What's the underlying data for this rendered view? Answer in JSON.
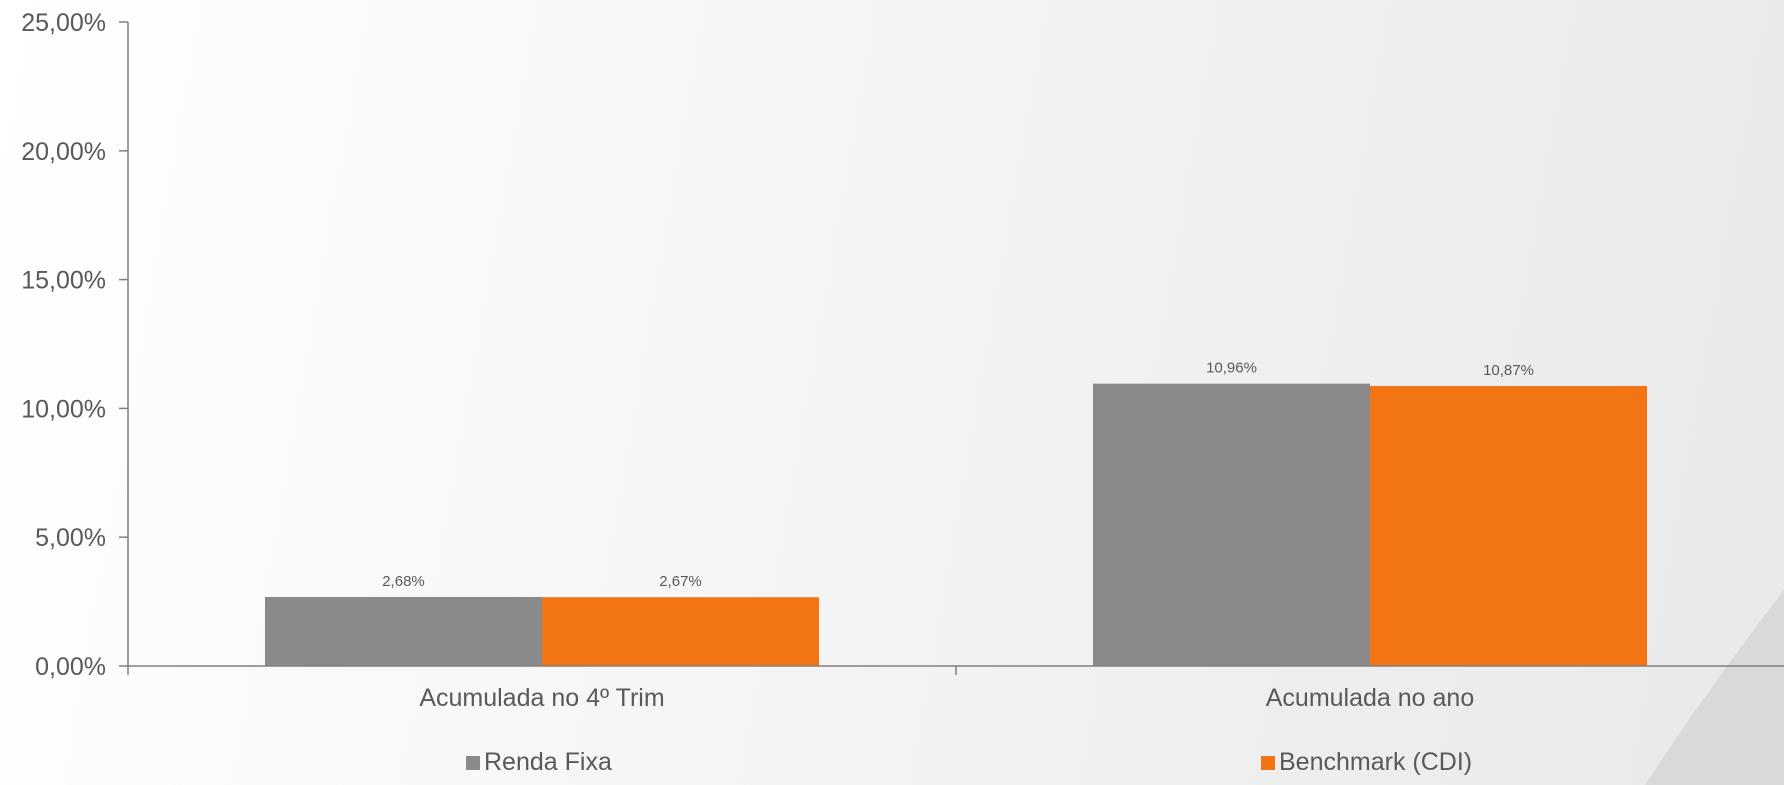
{
  "chart_data": {
    "type": "bar",
    "title": "",
    "xlabel": "",
    "ylabel": "",
    "categories": [
      "Acumulada no 4º Trim",
      "Acumulada no ano"
    ],
    "series": [
      {
        "name": "Renda Fixa",
        "color": "#8a8a8a",
        "values": [
          2.68,
          10.96
        ],
        "labels": [
          "2,68%",
          "10,96%"
        ]
      },
      {
        "name": "Benchmark (CDI)",
        "color": "#f37413",
        "values": [
          2.67,
          10.87
        ],
        "labels": [
          "2,67%",
          "10,87%"
        ]
      }
    ],
    "ylim": [
      0,
      25
    ],
    "yticks": [
      0,
      5,
      10,
      15,
      20,
      25
    ],
    "ytick_labels": [
      "0,00%",
      "5,00%",
      "10,00%",
      "15,00%",
      "20,00%",
      "25,00%"
    ],
    "grid": false,
    "legend_position": "bottom",
    "axis_color": "#7f7f7f"
  }
}
